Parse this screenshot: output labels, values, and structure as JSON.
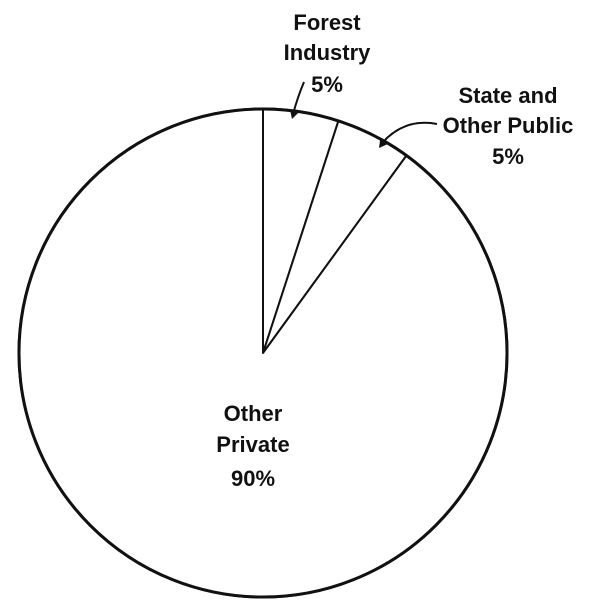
{
  "chart_data": {
    "type": "pie",
    "title": "",
    "slices": [
      {
        "name": "Forest Industry",
        "label_lines": [
          "Forest",
          "Industry"
        ],
        "value": 5,
        "value_label": "5%"
      },
      {
        "name": "State and Other Public",
        "label_lines": [
          "State and",
          "Other Public"
        ],
        "value": 5,
        "value_label": "5%"
      },
      {
        "name": "Other Private",
        "label_lines": [
          "Other",
          "Private"
        ],
        "value": 90,
        "value_label": "90%"
      }
    ],
    "start_angle_deg": 0,
    "direction": "clockwise",
    "fill_color": "#ffffff",
    "stroke_color": "#111111",
    "legend": "none"
  }
}
